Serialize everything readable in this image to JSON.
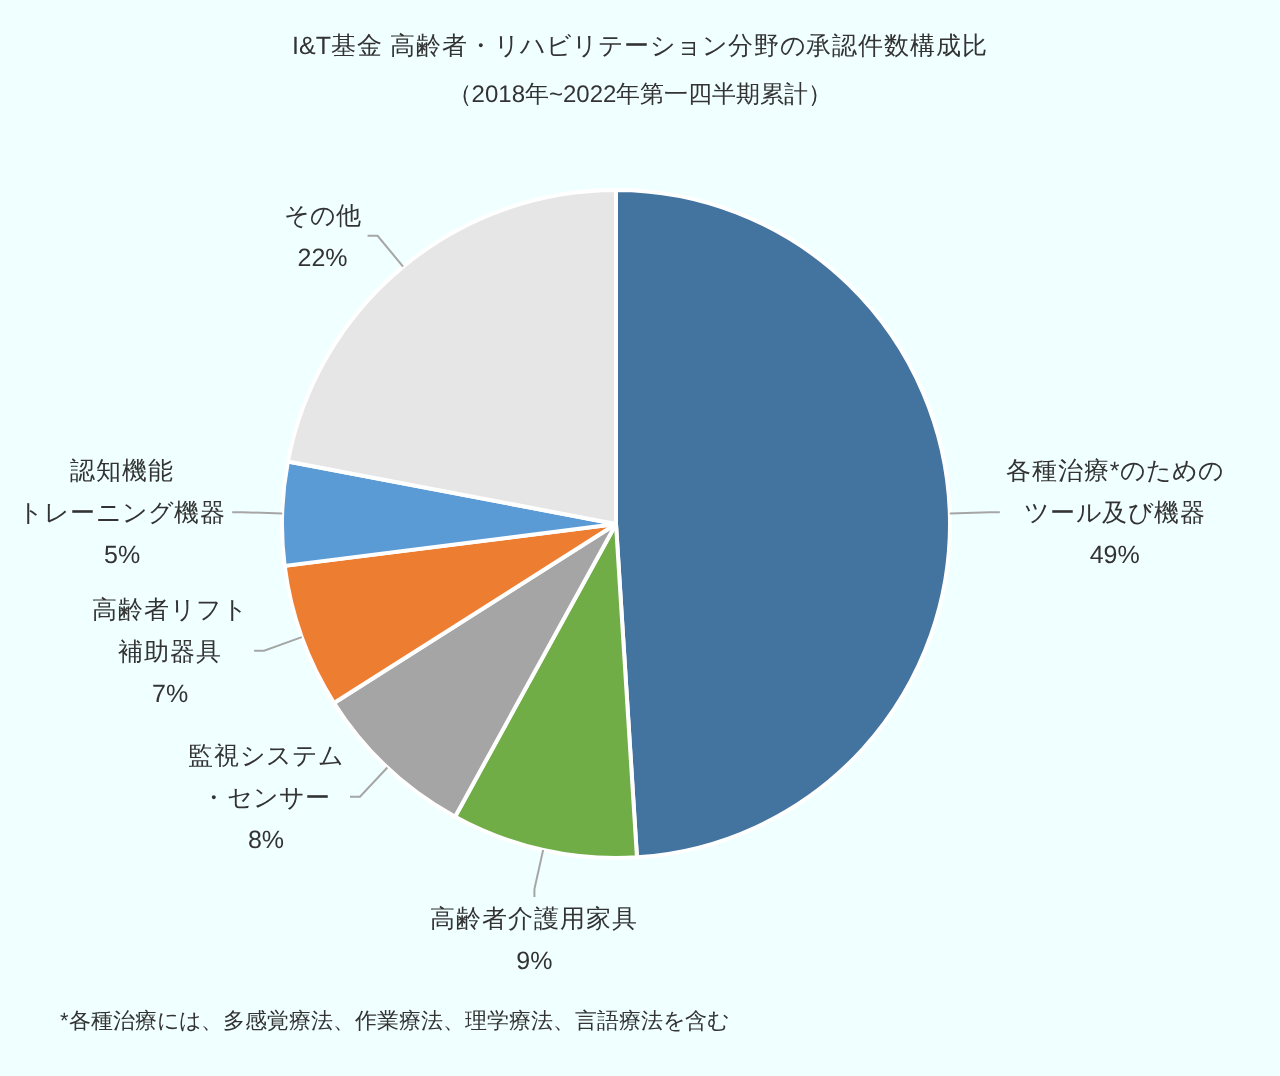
{
  "chart_data": {
    "type": "pie",
    "title": "I&T基金 高齢者・リハビリテーション分野の承認件数構成比",
    "subtitle": "（2018年~2022年第一四半期累計）",
    "categories": [
      "各種治療*のためのツール及び機器",
      "高齢者介護用家具",
      "監視システム・センサー",
      "高齢者リフト補助器具",
      "認知機能トレーニング機器",
      "その他"
    ],
    "values": [
      49,
      9,
      8,
      7,
      5,
      22
    ],
    "colors": [
      "#43739f",
      "#70ad47",
      "#a5a5a5",
      "#ed7d31",
      "#5b9bd5",
      "#e7e6e6"
    ],
    "value_labels": [
      "49%",
      "9%",
      "8%",
      "7%",
      "5%",
      "22%"
    ],
    "annotations": [
      "*各種治療には、多感覚療法、作業療法、理学療法、言語療法を含む"
    ]
  }
}
